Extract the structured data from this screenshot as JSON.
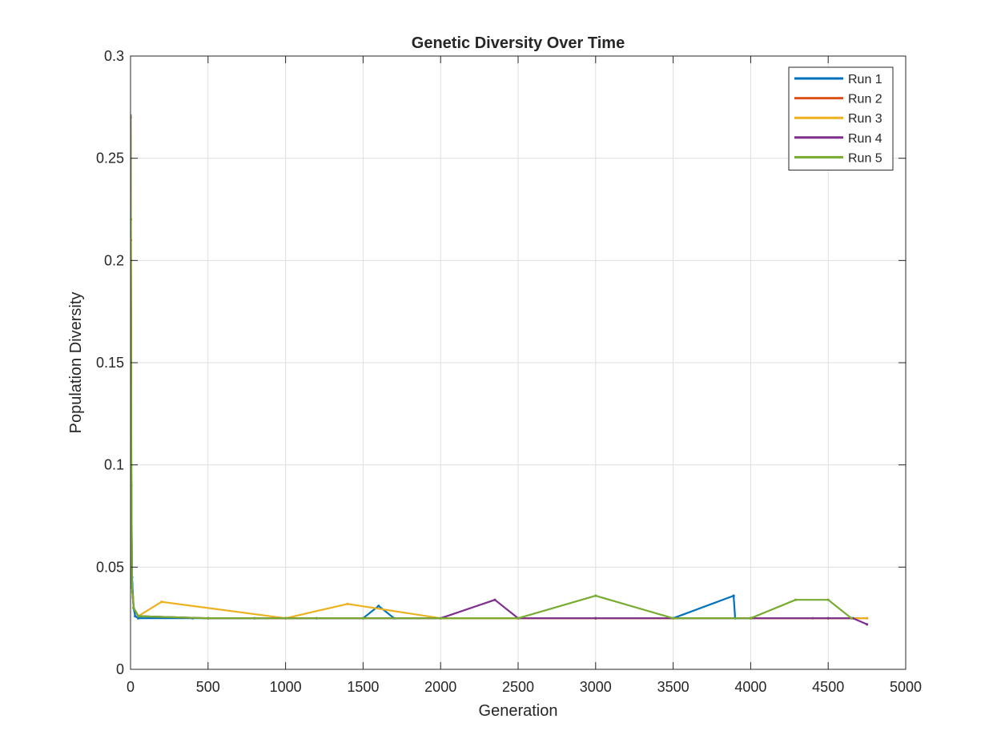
{
  "chart_data": {
    "type": "line",
    "title": "Genetic Diversity Over Time",
    "xlabel": "Generation",
    "ylabel": "Population Diversity",
    "xlim": [
      0,
      5000
    ],
    "ylim": [
      0,
      0.3
    ],
    "xticks": [
      0,
      500,
      1000,
      1500,
      2000,
      2500,
      3000,
      3500,
      4000,
      4500,
      5000
    ],
    "xtick_labels": [
      "0",
      "500",
      "1000",
      "1500",
      "2000",
      "2500",
      "3000",
      "3500",
      "4000",
      "4500",
      "5000"
    ],
    "yticks": [
      0,
      0.05,
      0.1,
      0.15,
      0.2,
      0.25,
      0.3
    ],
    "ytick_labels": [
      "0",
      "0.05",
      "0.1",
      "0.15",
      "0.2",
      "0.25",
      "0.3"
    ],
    "grid": true,
    "legend_position": "top-right",
    "series": [
      {
        "name": "Run 1",
        "color": "#0072BD",
        "x": [
          0,
          2,
          5,
          10,
          20,
          30,
          50,
          400,
          800,
          1200,
          1500,
          1600,
          1700,
          2000,
          2500,
          3000,
          3500,
          3890,
          3900,
          4000,
          4400,
          4650
        ],
        "y": [
          0.27,
          0.2,
          0.08,
          0.045,
          0.03,
          0.026,
          0.025,
          0.025,
          0.025,
          0.025,
          0.025,
          0.031,
          0.025,
          0.025,
          0.025,
          0.025,
          0.025,
          0.036,
          0.025,
          0.025,
          0.025,
          0.025
        ]
      },
      {
        "name": "Run 2",
        "color": "#D95319",
        "x": [
          0,
          2,
          5,
          10,
          20,
          50,
          500,
          1000,
          1500,
          2000,
          2500,
          3000,
          3500,
          4000,
          4500,
          4750
        ],
        "y": [
          0.27,
          0.21,
          0.09,
          0.04,
          0.03,
          0.026,
          0.025,
          0.025,
          0.025,
          0.025,
          0.025,
          0.025,
          0.025,
          0.025,
          0.025,
          0.025
        ]
      },
      {
        "name": "Run 3",
        "color": "#EDB120",
        "x": [
          0,
          2,
          5,
          10,
          20,
          50,
          200,
          1000,
          1400,
          2000,
          2500,
          3000,
          3500,
          4000,
          4500,
          4750
        ],
        "y": [
          0.27,
          0.22,
          0.1,
          0.04,
          0.03,
          0.026,
          0.033,
          0.025,
          0.032,
          0.025,
          0.025,
          0.025,
          0.025,
          0.025,
          0.025,
          0.025
        ]
      },
      {
        "name": "Run 4",
        "color": "#7E2F8E",
        "x": [
          0,
          2,
          5,
          10,
          20,
          50,
          500,
          1000,
          1500,
          2000,
          2350,
          2500,
          3000,
          3500,
          4000,
          4500,
          4660,
          4750
        ],
        "y": [
          0.27,
          0.2,
          0.09,
          0.04,
          0.03,
          0.026,
          0.025,
          0.025,
          0.025,
          0.025,
          0.034,
          0.025,
          0.025,
          0.025,
          0.025,
          0.025,
          0.025,
          0.022
        ]
      },
      {
        "name": "Run 5",
        "color": "#77AC30",
        "x": [
          0,
          2,
          5,
          10,
          20,
          50,
          500,
          1000,
          1500,
          2000,
          2500,
          3000,
          3500,
          4000,
          4290,
          4500,
          4650
        ],
        "y": [
          0.271,
          0.22,
          0.1,
          0.04,
          0.03,
          0.026,
          0.025,
          0.025,
          0.025,
          0.025,
          0.025,
          0.036,
          0.025,
          0.025,
          0.034,
          0.034,
          0.025
        ]
      }
    ]
  }
}
